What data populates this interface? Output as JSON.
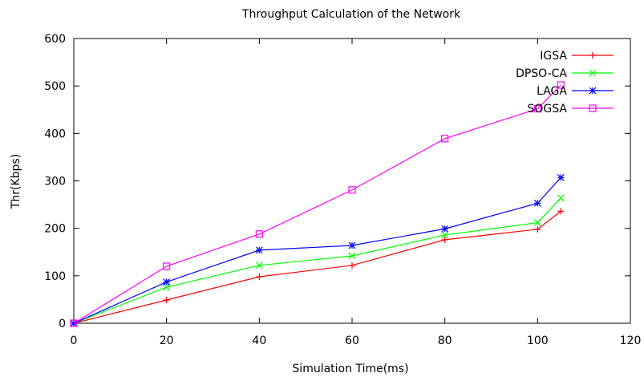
{
  "chart_data": {
    "type": "line",
    "title": "Throughput Calculation of the Network",
    "xlabel": "Simulation Time(ms)",
    "ylabel": "Thr(Kbps)",
    "xlim": [
      0,
      120
    ],
    "ylim": [
      0,
      600
    ],
    "xticks": [
      0,
      20,
      40,
      60,
      80,
      100,
      120
    ],
    "yticks": [
      0,
      100,
      200,
      300,
      400,
      500,
      600
    ],
    "grid": false,
    "legend_position": "top-right",
    "x": [
      0,
      20,
      40,
      60,
      80,
      100,
      105
    ],
    "series": [
      {
        "name": "IGSA",
        "color": "#ff0000",
        "marker": "plus",
        "values": [
          0,
          49,
          98,
          122,
          176,
          198,
          236
        ]
      },
      {
        "name": "DPSO-CA",
        "color": "#00ff00",
        "marker": "x",
        "values": [
          0,
          76,
          122,
          142,
          186,
          212,
          264
        ]
      },
      {
        "name": "LAGA",
        "color": "#0000ff",
        "marker": "star",
        "values": [
          0,
          87,
          154,
          164,
          199,
          253,
          307
        ]
      },
      {
        "name": "SOGSA",
        "color": "#ff00ff",
        "marker": "square",
        "values": [
          0,
          120,
          188,
          281,
          389,
          452,
          502
        ]
      }
    ]
  }
}
